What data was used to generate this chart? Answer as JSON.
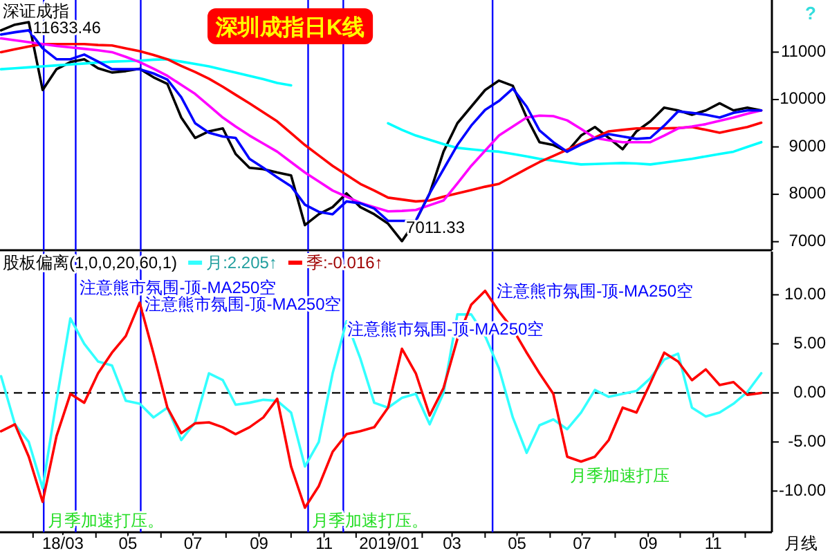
{
  "chart_data": [
    {
      "type": "line",
      "title": "深证成指",
      "xlim": [
        "2018-01-01",
        "2019-12-26"
      ],
      "ylim": [
        6820,
        12100
      ],
      "yticks": [
        7000,
        8000,
        9000,
        10000,
        11000
      ],
      "tick_labels": "y",
      "x": [
        "2018-01-02",
        "2018-01-15",
        "2018-01-28",
        "2018-02-10",
        "2018-02-23",
        "2018-03-08",
        "2018-03-21",
        "2018-04-03",
        "2018-04-16",
        "2018-04-29",
        "2018-05-12",
        "2018-05-25",
        "2018-06-07",
        "2018-06-20",
        "2018-07-03",
        "2018-07-16",
        "2018-07-29",
        "2018-08-10",
        "2018-08-23",
        "2018-09-05",
        "2018-09-18",
        "2018-10-01",
        "2018-10-14",
        "2018-10-27",
        "2018-11-09",
        "2018-11-22",
        "2018-12-05",
        "2018-12-18",
        "2018-12-31",
        "2019-01-13",
        "2019-01-26",
        "2019-02-08",
        "2019-02-21",
        "2019-03-06",
        "2019-03-19",
        "2019-04-01",
        "2019-04-14",
        "2019-04-27",
        "2019-05-10",
        "2019-05-22",
        "2019-06-04",
        "2019-06-17",
        "2019-06-30",
        "2019-07-13",
        "2019-07-26",
        "2019-08-08",
        "2019-08-21",
        "2019-09-03",
        "2019-09-16",
        "2019-09-29",
        "2019-10-12",
        "2019-10-25",
        "2019-11-07",
        "2019-11-20",
        "2019-12-03",
        "2019-12-16"
      ],
      "series": [
        {
          "color": "#000000",
          "values": [
            11460,
            11580,
            11633.46,
            10200,
            10640,
            10790,
            10850,
            10660,
            10570,
            10600,
            10650,
            10470,
            10330,
            9620,
            9190,
            9330,
            9390,
            8850,
            8560,
            8530,
            8460,
            8400,
            7350,
            7580,
            7730,
            8020,
            7730,
            7580,
            7380,
            7011.33,
            7440,
            8020,
            8900,
            9500,
            9850,
            10200,
            10400,
            10290,
            9620,
            9100,
            9040,
            8900,
            9240,
            9420,
            9190,
            8950,
            9330,
            9540,
            9830,
            9770,
            9680,
            9770,
            9920,
            9770,
            9830,
            9770
          ]
        },
        {
          "color": "#00ffff",
          "values": [
            10640,
            10660,
            10680,
            10700,
            10720,
            10740,
            10760,
            10780,
            10800,
            10810,
            10820,
            10840,
            10850,
            10800,
            10750,
            10700,
            10630,
            10570,
            10500,
            10430,
            10350,
            10300,
            null,
            null,
            null,
            null,
            null,
            null,
            9500,
            9360,
            9240,
            9150,
            9060,
            8980,
            8950,
            8920,
            8900,
            8850,
            8800,
            8750,
            8710,
            8670,
            8630,
            8640,
            8650,
            8660,
            8650,
            8630,
            8670,
            8710,
            8750,
            8800,
            8850,
            8900,
            9000,
            9100
          ]
        },
        {
          "color": "#ff0000",
          "values": [
            11000,
            11060,
            11120,
            11170,
            11170,
            11170,
            11170,
            11150,
            11140,
            11080,
            11020,
            10940,
            10850,
            10710,
            10580,
            10440,
            10270,
            10100,
            9920,
            9730,
            9540,
            9290,
            9040,
            8820,
            8600,
            8410,
            8220,
            8080,
            7930,
            7890,
            7850,
            7870,
            7950,
            8020,
            8090,
            8160,
            8220,
            8380,
            8540,
            8680,
            8810,
            8940,
            9070,
            9200,
            9330,
            9360,
            9390,
            9390,
            9390,
            9400,
            9420,
            9360,
            9300,
            9360,
            9420,
            9510
          ]
        },
        {
          "color": "#ff00ff",
          "values": [
            11290,
            11250,
            11210,
            11170,
            11130,
            11100,
            11070,
            11040,
            11000,
            10900,
            10790,
            10650,
            10500,
            10310,
            10120,
            9870,
            9620,
            9430,
            9240,
            9070,
            8900,
            8680,
            8460,
            8270,
            8080,
            7950,
            7820,
            7730,
            7640,
            7650,
            7670,
            7770,
            7870,
            8230,
            8600,
            8920,
            9240,
            9430,
            9620,
            9660,
            9650,
            9560,
            9380,
            9190,
            9140,
            9100,
            9100,
            9100,
            9240,
            9390,
            9430,
            9480,
            9550,
            9620,
            9700,
            9770
          ]
        },
        {
          "color": "#0000ff",
          "values": [
            11370,
            11420,
            11460,
            11080,
            10850,
            10850,
            10950,
            10800,
            10640,
            10640,
            10640,
            10550,
            10420,
            10050,
            9500,
            9300,
            9220,
            9190,
            8750,
            8560,
            8360,
            8170,
            7780,
            7630,
            7580,
            7850,
            7810,
            7700,
            7440,
            7440,
            7440,
            8020,
            8530,
            9040,
            9450,
            9780,
            9970,
            10230,
            9850,
            9350,
            9100,
            8900,
            9050,
            9170,
            9270,
            9220,
            9170,
            9190,
            9450,
            9750,
            9720,
            9680,
            9620,
            9720,
            9770,
            9770
          ]
        }
      ],
      "ref_lines": [
        {
          "axis": "x",
          "value": "2018-02-11",
          "color": "#0000ff"
        },
        {
          "axis": "x",
          "value": "2018-03-13",
          "color": "#0000ff"
        },
        {
          "axis": "x",
          "value": "2018-05-13",
          "color": "#0000ff"
        },
        {
          "axis": "x",
          "value": "2018-10-17",
          "color": "#0000ff"
        },
        {
          "axis": "x",
          "value": "2018-11-19",
          "color": "#0000ff"
        },
        {
          "axis": "x",
          "value": "2019-04-08",
          "color": "#0000ff"
        }
      ],
      "annotations": [
        {
          "text": "11633.46",
          "x": "2018-01-28",
          "y": 11633.46
        },
        {
          "text": "7011.33",
          "x": "2019-01-13",
          "y": 7011.33
        },
        "深圳成指日K线",
        "?"
      ]
    },
    {
      "type": "line",
      "title": "股板偏离(1,0,0,20,60,1)",
      "legend": "top left",
      "xlim": [
        "2018-01-01",
        "2019-12-26"
      ],
      "ylim": [
        -14.2,
        14.4
      ],
      "yticks": [
        {
          "value": -10,
          "label": "-10.00"
        },
        {
          "value": -5,
          "label": "-5.00"
        },
        {
          "value": 0,
          "label": "0.00"
        },
        {
          "value": 5,
          "label": "5.00"
        },
        {
          "value": 10,
          "label": "10.00"
        }
      ],
      "xticks": [
        {
          "value": "2018-02",
          "label": null
        },
        {
          "value": "2018-03",
          "label": "18/03"
        },
        {
          "value": "2018-04",
          "label": null
        },
        {
          "value": "2018-05",
          "label": "05"
        },
        {
          "value": "2018-06",
          "label": null
        },
        {
          "value": "2018-07",
          "label": "07"
        },
        {
          "value": "2018-08",
          "label": null
        },
        {
          "value": "2018-09",
          "label": "09"
        },
        {
          "value": "2018-10",
          "label": null
        },
        {
          "value": "2018-11",
          "label": "11"
        },
        {
          "value": "2018-12",
          "label": null
        },
        {
          "value": "2019-01",
          "label": "2019/01"
        },
        {
          "value": "2019-02",
          "label": null
        },
        {
          "value": "2019-03",
          "label": "03"
        },
        {
          "value": "2019-04",
          "label": null
        },
        {
          "value": "2019-05",
          "label": "05"
        },
        {
          "value": "2019-06",
          "label": null
        },
        {
          "value": "2019-07",
          "label": "07"
        },
        {
          "value": "2019-08",
          "label": null
        },
        {
          "value": "2019-09",
          "label": "09"
        },
        {
          "value": "2019-10",
          "label": null
        },
        {
          "value": "2019-11",
          "label": "11"
        },
        {
          "value": "2019-12",
          "label": null
        }
      ],
      "x": [
        "2018-01-02",
        "2018-01-15",
        "2018-01-28",
        "2018-02-10",
        "2018-02-23",
        "2018-03-08",
        "2018-03-21",
        "2018-04-03",
        "2018-04-16",
        "2018-04-29",
        "2018-05-12",
        "2018-05-25",
        "2018-06-07",
        "2018-06-20",
        "2018-07-03",
        "2018-07-16",
        "2018-07-29",
        "2018-08-10",
        "2018-08-23",
        "2018-09-05",
        "2018-09-18",
        "2018-10-01",
        "2018-10-14",
        "2018-10-27",
        "2018-11-09",
        "2018-11-22",
        "2018-12-05",
        "2018-12-18",
        "2018-12-31",
        "2019-01-13",
        "2019-01-26",
        "2019-02-08",
        "2019-02-21",
        "2019-03-06",
        "2019-03-19",
        "2019-04-01",
        "2019-04-14",
        "2019-04-27",
        "2019-05-10",
        "2019-05-22",
        "2019-06-04",
        "2019-06-17",
        "2019-06-30",
        "2019-07-13",
        "2019-07-26",
        "2019-08-08",
        "2019-08-21",
        "2019-09-03",
        "2019-09-16",
        "2019-09-29",
        "2019-10-12",
        "2019-10-25",
        "2019-11-07",
        "2019-11-20",
        "2019-12-03",
        "2019-12-16"
      ],
      "series": [
        {
          "name": "月:2.205↑",
          "color": "#33ffff",
          "values": [
            1.7,
            -3.2,
            -5,
            -9.7,
            -0.8,
            7.6,
            5,
            3.2,
            2.8,
            -0.8,
            -1.1,
            -2.5,
            -1.5,
            -4.8,
            -3,
            2,
            1.3,
            -1.2,
            -1,
            -0.7,
            -0.8,
            -2,
            -7.5,
            -5,
            2,
            7.3,
            3.5,
            -1,
            -1.5,
            -0.5,
            -0.1,
            -3.2,
            0,
            8,
            8,
            5.8,
            2.5,
            -2.5,
            -6.1,
            -3.3,
            -2.7,
            -3.7,
            -2,
            0.3,
            -0.4,
            -0.1,
            0.2,
            1.5,
            3.4,
            4,
            -1.5,
            -2.4,
            -2,
            -1.1,
            0.1,
            2
          ]
        },
        {
          "name": "季:-0.016↑",
          "color": "#ff0000",
          "values": [
            -3.9,
            -3.2,
            -6.5,
            -11.1,
            -4.4,
            -0.1,
            -1,
            2,
            4.1,
            5.8,
            9.2,
            4,
            -1.5,
            -4.1,
            -3.1,
            -3,
            -3.5,
            -4.2,
            -3.5,
            -2.5,
            -0.6,
            -7.5,
            -11.7,
            -9.5,
            -6,
            -4.2,
            -3.9,
            -3.5,
            -1.5,
            4.5,
            2,
            -2.3,
            0.5,
            5.5,
            9,
            10.4,
            8.3,
            6.5,
            4.1,
            2,
            -0.1,
            -6.5,
            -7,
            -6.5,
            -4.8,
            -1.5,
            -2,
            1,
            4.1,
            3.2,
            1.3,
            2.4,
            0.8,
            1.1,
            -0.2,
            0
          ]
        }
      ],
      "ref_lines": [
        {
          "axis": "y",
          "value": 0,
          "color": "#000000",
          "line_style": "dashed"
        },
        {
          "axis": "x",
          "value": "2018-02-11",
          "color": "#0000ff"
        },
        {
          "axis": "x",
          "value": "2018-03-13",
          "color": "#0000ff"
        },
        {
          "axis": "x",
          "value": "2018-05-13",
          "color": "#0000ff"
        },
        {
          "axis": "x",
          "value": "2018-10-17",
          "color": "#0000ff"
        },
        {
          "axis": "x",
          "value": "2018-11-19",
          "color": "#0000ff"
        },
        {
          "axis": "x",
          "value": "2019-04-08",
          "color": "#0000ff"
        }
      ],
      "annotations": [
        {
          "text": "注意熊市氛围-顶-MA250空",
          "x": "2018-03-13",
          "y": 10.6
        },
        {
          "text": "注意熊市氛围-顶-MA250空",
          "x": "2018-05-13",
          "y": 8.9
        },
        {
          "text": "注意熊市氛围-顶-MA250空",
          "x": "2018-11-19",
          "y": 6.4
        },
        {
          "text": "注意熊市氛围-顶-MA250空",
          "x": "2019-04-08",
          "y": 10.3
        },
        {
          "text": "月季加速打压。",
          "x": "2018-02-11",
          "y": -13.1
        },
        {
          "text": "月季加速打压。",
          "x": "2018-10-17",
          "y": -13.1
        },
        "月季加速打压",
        "月线"
      ]
    }
  ]
}
